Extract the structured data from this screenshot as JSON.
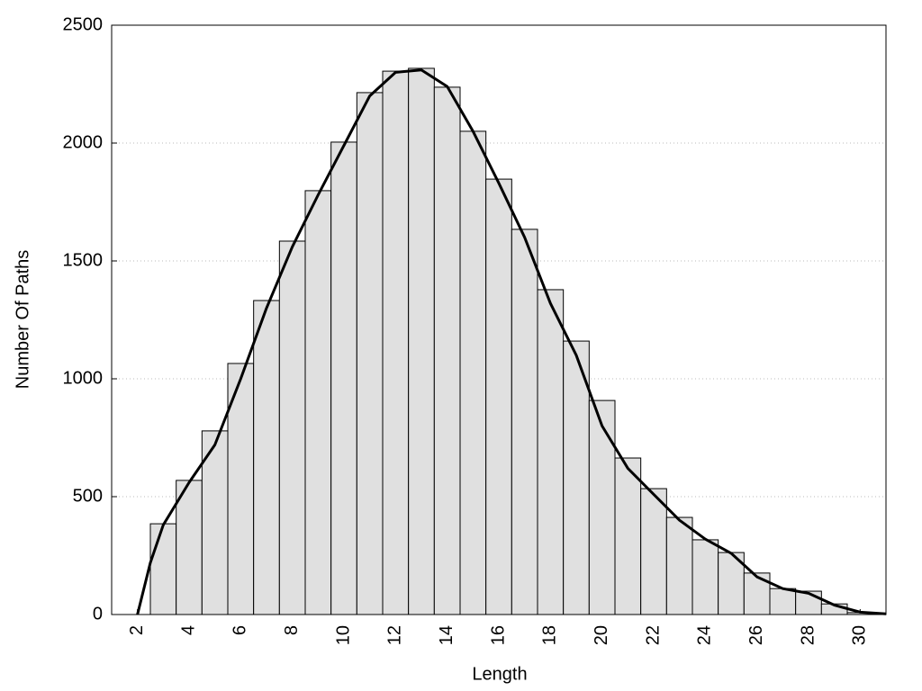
{
  "chart_data": {
    "type": "histogram",
    "xlabel": "Length",
    "ylabel": "Number Of Paths",
    "bins": [
      2.5,
      3.5,
      4.5,
      5.5,
      6.5,
      7.5,
      8.5,
      9.5,
      10.5,
      11.5,
      12.5,
      13.5,
      14.5,
      15.5,
      16.5,
      17.5,
      18.5,
      19.5,
      20.5,
      21.5,
      22.5,
      23.5,
      24.5,
      25.5,
      26.5,
      27.5,
      28.5,
      29.5,
      30.5
    ],
    "counts": [
      385,
      569,
      779,
      1065,
      1332,
      1584,
      1798,
      2004,
      2214,
      2305,
      2317,
      2237,
      2050,
      1847,
      1634,
      1378,
      1160,
      908,
      664,
      534,
      412,
      317,
      263,
      176,
      110,
      99,
      45,
      8
    ],
    "color": "#e0e0e0",
    "edgecolor": "#000000",
    "curve": {
      "x": [
        2,
        2.5,
        3,
        3.5,
        4,
        5,
        6,
        7,
        8,
        9,
        10,
        11,
        12,
        13,
        14,
        15,
        16,
        17,
        18,
        19,
        20,
        21,
        22,
        23,
        24,
        25,
        26,
        27,
        28,
        29,
        30,
        31
      ],
      "y": [
        0,
        220,
        380,
        470,
        560,
        720,
        1000,
        1300,
        1560,
        1780,
        1990,
        2200,
        2300,
        2310,
        2240,
        2050,
        1830,
        1600,
        1320,
        1100,
        800,
        620,
        510,
        400,
        320,
        260,
        160,
        110,
        90,
        40,
        10,
        3
      ],
      "color": "#000000"
    },
    "xlim": [
      1,
      31
    ],
    "ylim": [
      0,
      2500
    ],
    "xticks": [
      2,
      4,
      6,
      8,
      10,
      12,
      14,
      16,
      18,
      20,
      22,
      24,
      26,
      28,
      30
    ],
    "yticks": [
      0,
      500,
      1000,
      1500,
      2000,
      2500
    ],
    "grid": true
  }
}
